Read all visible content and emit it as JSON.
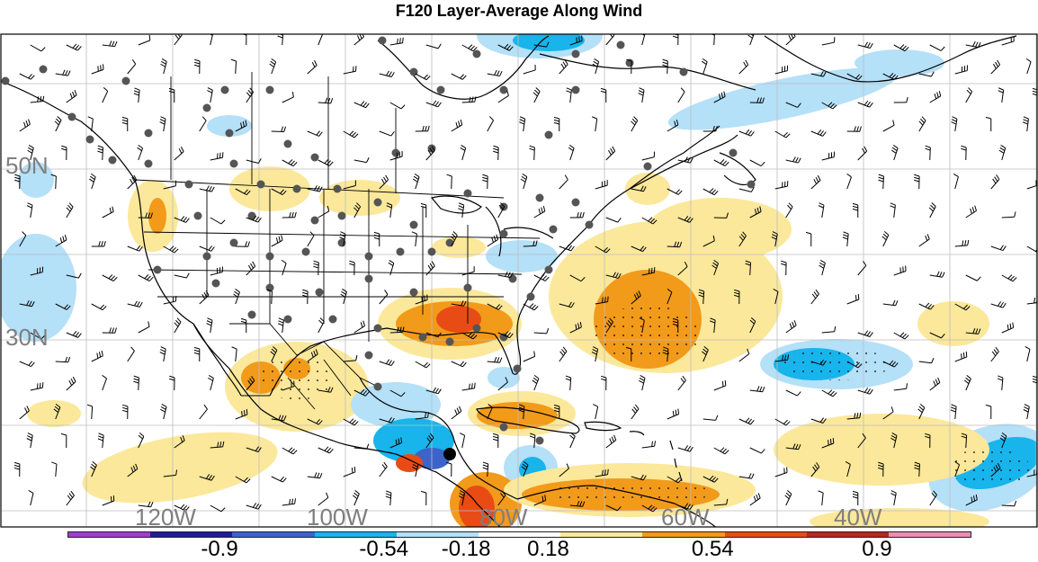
{
  "title": "F120 Layer-Average Along Wind",
  "latitude_labels": [
    "50N",
    "30N"
  ],
  "longitude_labels": [
    "120W",
    "100W",
    "80W",
    "60W",
    "40W"
  ],
  "colorbar": {
    "colors": [
      "#a040c8",
      "#1f1f8f",
      "#3c64c8",
      "#18b4ec",
      "#b4e0f8",
      "#ffffff",
      "#fbe89a",
      "#f29a1a",
      "#e84c14",
      "#b4281e",
      "#f08cb4"
    ],
    "tick_labels": [
      "-0.9",
      "-0.54",
      "-0.18",
      "0.18",
      "0.54",
      "0.9"
    ]
  },
  "colors": {
    "land_outline": "#000000",
    "grid": "#bdbdbd",
    "station": "#555555",
    "barb": "#000000"
  }
}
